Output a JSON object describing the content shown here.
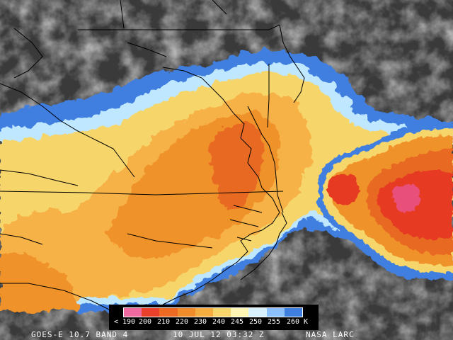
{
  "colors": {
    "cloud_dark": "#3a3a3a",
    "cloud_gray": "#8c8c8c",
    "blue": "#3f7fe0",
    "light_blue": "#bfe7ff",
    "yellow": "#f6d66a",
    "light_orange": "#f6b247",
    "orange": "#f0922a",
    "dark_orange": "#e86a20",
    "red_orange": "#e63a22",
    "pink": "#e8507a"
  },
  "legend": {
    "ticks": [
      "< 190",
      "200",
      "210",
      "220",
      "230",
      "240",
      "245",
      "250",
      "255",
      "260 K"
    ],
    "swatches": [
      "#f06aa0",
      "#e8402a",
      "#ee6a22",
      "#f08c2a",
      "#f4ad3e",
      "#f6d66a",
      "#fff5b5",
      "#d9f2ff",
      "#8cc0ff",
      "#3f7fe0"
    ]
  },
  "caption": {
    "source": "GOES-E 10.7 BAND 4",
    "datetime": "10 JUL 12 03:32 Z",
    "credit": "NASA LARC"
  }
}
